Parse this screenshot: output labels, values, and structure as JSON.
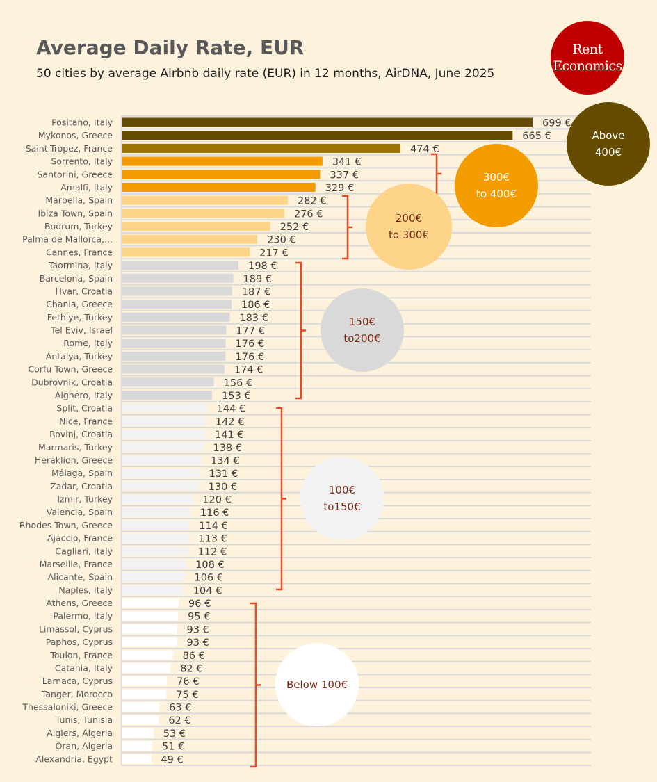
{
  "chart_data": {
    "type": "bar",
    "orientation": "horizontal",
    "title": "Average Daily Rate, EUR",
    "subtitle": "50 cities by average Airbnb daily rate (EUR) in 12 months, AirDNA, June 2025",
    "value_suffix": " €",
    "categories": [
      "Positano, Italy",
      "Mykonos, Greece",
      "Saint-Tropez, France",
      "Sorrento, Italy",
      "Santorini, Greece",
      "Amalfi, Italy",
      "Marbella, Spain",
      "Ibiza Town, Spain",
      "Bodrum, Turkey",
      "Palma de Mallorca,...",
      "Cannes, France",
      "Taormina, Italy",
      "Barcelona, Spain",
      "Hvar, Croatia",
      "Chania, Greece",
      "Fethiye, Turkey",
      "Tel Eviv, Israel",
      "Rome, Italy",
      "Antalya, Turkey",
      "Corfu Town, Greece",
      "Dubrovnik, Croatia",
      "Alghero, Italy",
      "Split, Croatia",
      "Nice, France",
      "Rovinj, Croatia",
      "Marmaris, Turkey",
      "Heraklion, Greece",
      "Málaga, Spain",
      "Zadar, Croatia",
      "Izmir, Turkey",
      "Valencia, Spain",
      "Rhodes Town, Greece",
      "Ajaccio, France",
      "Cagliari, Italy",
      "Marseille, France",
      "Alicante, Spain",
      "Naples, Italy",
      "Athens, Greece",
      "Palermo, Italy",
      "Limassol, Cyprus",
      "Paphos, Cyprus",
      "Toulon, France",
      "Catania, Italy",
      "Larnaca, Cyprus",
      "Tanger, Morocco",
      "Thessaloniki, Greece",
      "Tunis, Tunisia",
      "Algiers, Algeria",
      "Oran, Algeria",
      "Alexandria, Egypt"
    ],
    "values": [
      699,
      665,
      474,
      341,
      337,
      329,
      282,
      276,
      252,
      230,
      217,
      198,
      189,
      187,
      186,
      183,
      177,
      176,
      176,
      174,
      156,
      153,
      144,
      142,
      141,
      138,
      134,
      131,
      130,
      120,
      116,
      114,
      113,
      112,
      108,
      106,
      104,
      96,
      95,
      93,
      93,
      86,
      82,
      76,
      75,
      63,
      62,
      53,
      51,
      49
    ],
    "xlim": [
      0,
      800
    ],
    "groups": [
      {
        "label_lines": [
          "Above",
          "400€"
        ],
        "min": 400,
        "max": 10000,
        "color": "#654c00",
        "top_color": "#9a7300",
        "text_color": "#ffffff"
      },
      {
        "label_lines": [
          "300€",
          "to 400€"
        ],
        "min": 300,
        "max": 400,
        "color": "#f39c00",
        "text_color": "#ffffff"
      },
      {
        "label_lines": [
          "200€",
          "to 300€"
        ],
        "min": 200,
        "max": 300,
        "color": "#fed48b",
        "text_color": "#7a2a14"
      },
      {
        "label_lines": [
          "150€",
          "to200€"
        ],
        "min": 150,
        "max": 200,
        "color": "#d9d9d9",
        "text_color": "#7a2a14"
      },
      {
        "label_lines": [
          "100€",
          "to150€"
        ],
        "min": 100,
        "max": 150,
        "color": "#f2f2f2",
        "text_color": "#7a2a14"
      },
      {
        "label_lines": [
          "Below 100€"
        ],
        "min": 0,
        "max": 100,
        "color": "#ffffff",
        "text_color": "#7a2a14"
      }
    ],
    "bracket_color": "#e84a27",
    "grid": true
  },
  "logo": {
    "line1": "Rent",
    "line2": "Economics"
  }
}
